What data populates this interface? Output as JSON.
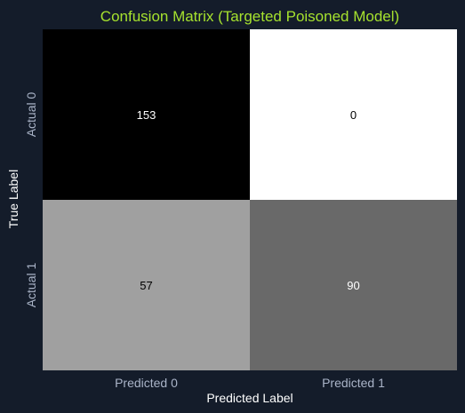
{
  "chart_data": {
    "type": "heatmap",
    "title": "Confusion Matrix (Targeted Poisoned Model)",
    "xlabel": "Predicted Label",
    "ylabel": "True Label",
    "x_categories": [
      "Predicted 0",
      "Predicted 1"
    ],
    "y_categories": [
      "Actual 0",
      "Actual 1"
    ],
    "values": [
      [
        153,
        0
      ],
      [
        57,
        90
      ]
    ],
    "colorscale": "greys_reversed",
    "colorbar": false
  },
  "colors": {
    "background": "#141c2a",
    "title": "#a6e22e",
    "tick_labels": "#aab4c8",
    "axis_labels": "#ffffff",
    "cell_text_on_dark": "#ffffff",
    "cell_text_on_light": "#000000"
  }
}
